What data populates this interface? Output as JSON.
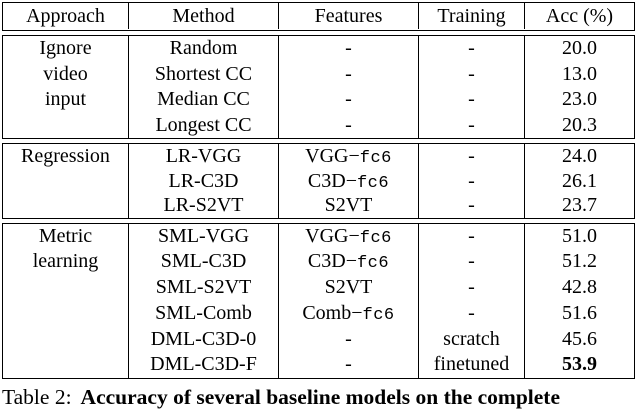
{
  "table": {
    "columns": [
      {
        "label": "Approach"
      },
      {
        "label": "Method"
      },
      {
        "label": "Features"
      },
      {
        "label": "Training"
      },
      {
        "label": "Acc (%)"
      }
    ],
    "sections": [
      {
        "approach_lines": [
          "Ignore",
          "video",
          "input"
        ],
        "rows": [
          {
            "method": "Random",
            "features": "-",
            "features_mono": "",
            "training": "-",
            "acc": "20.0",
            "acc_bold": false
          },
          {
            "method": "Shortest CC",
            "features": "-",
            "features_mono": "",
            "training": "-",
            "acc": "13.0",
            "acc_bold": false
          },
          {
            "method": "Median CC",
            "features": "-",
            "features_mono": "",
            "training": "-",
            "acc": "23.0",
            "acc_bold": false
          },
          {
            "method": "Longest CC",
            "features": "-",
            "features_mono": "",
            "training": "-",
            "acc": "20.3",
            "acc_bold": false
          }
        ]
      },
      {
        "approach_lines": [
          "Regression"
        ],
        "rows": [
          {
            "method": "LR-VGG",
            "features": "VGG−",
            "features_mono": "fc6",
            "training": "-",
            "acc": "24.0",
            "acc_bold": false
          },
          {
            "method": "LR-C3D",
            "features": "C3D−",
            "features_mono": "fc6",
            "training": "-",
            "acc": "26.1",
            "acc_bold": false
          },
          {
            "method": "LR-S2VT",
            "features": "S2VT",
            "features_mono": "",
            "training": "-",
            "acc": "23.7",
            "acc_bold": false
          }
        ]
      },
      {
        "approach_lines": [
          "Metric",
          "learning"
        ],
        "rows": [
          {
            "method": "SML-VGG",
            "features": "VGG−",
            "features_mono": "fc6",
            "training": "-",
            "acc": "51.0",
            "acc_bold": false
          },
          {
            "method": "SML-C3D",
            "features": "C3D−",
            "features_mono": "fc6",
            "training": "-",
            "acc": "51.2",
            "acc_bold": false
          },
          {
            "method": "SML-S2VT",
            "features": "S2VT",
            "features_mono": "",
            "training": "-",
            "acc": "42.8",
            "acc_bold": false
          },
          {
            "method": "SML-Comb",
            "features": "Comb−",
            "features_mono": "fc6",
            "training": "-",
            "acc": "51.6",
            "acc_bold": false
          },
          {
            "method": "DML-C3D-0",
            "features": "-",
            "features_mono": "",
            "training": "scratch",
            "acc": "45.6",
            "acc_bold": false
          },
          {
            "method": "DML-C3D-F",
            "features": "-",
            "features_mono": "",
            "training": "finetuned",
            "acc": "53.9",
            "acc_bold": true
          }
        ]
      }
    ],
    "section_row_heights": [
      25.5,
      24.5,
      25.8
    ]
  },
  "caption": {
    "label": "Table 2:",
    "text": "Accuracy of several baseline models on the complete"
  }
}
